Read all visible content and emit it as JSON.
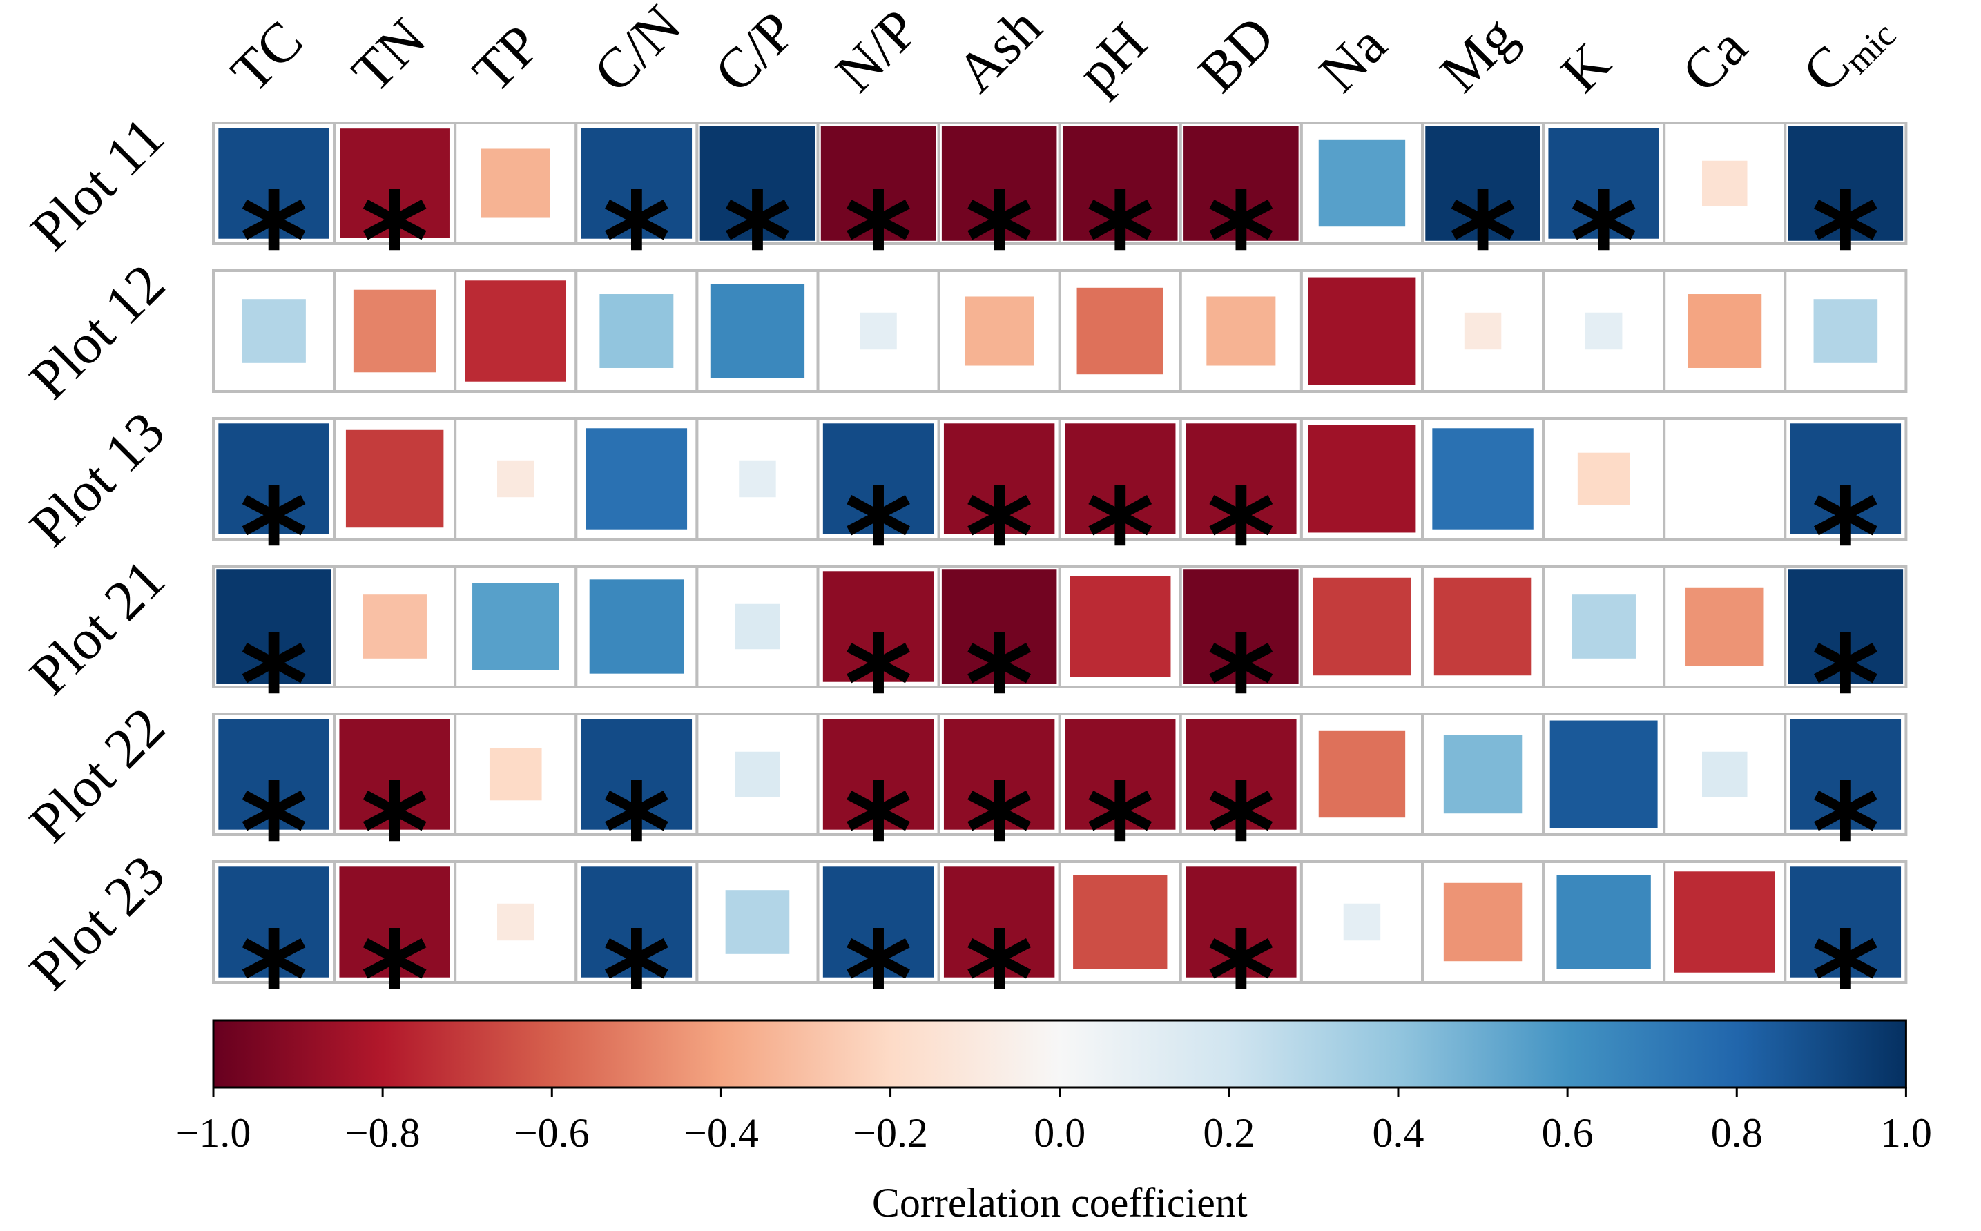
{
  "chart_data": {
    "type": "heatmap",
    "title": "",
    "columns": [
      "TC",
      "TN",
      "TP",
      "C/N",
      "C/P",
      "N/P",
      "Ash",
      "pH",
      "BD",
      "Na",
      "Mg",
      "K",
      "Ca",
      "C_mic"
    ],
    "column_labels": [
      {
        "base": "TC",
        "sub": ""
      },
      {
        "base": "TN",
        "sub": ""
      },
      {
        "base": "TP",
        "sub": ""
      },
      {
        "base": "C/N",
        "sub": ""
      },
      {
        "base": "C/P",
        "sub": ""
      },
      {
        "base": "N/P",
        "sub": ""
      },
      {
        "base": "Ash",
        "sub": ""
      },
      {
        "base": "pH",
        "sub": ""
      },
      {
        "base": "BD",
        "sub": ""
      },
      {
        "base": "Na",
        "sub": ""
      },
      {
        "base": "Mg",
        "sub": ""
      },
      {
        "base": "K",
        "sub": ""
      },
      {
        "base": "Ca",
        "sub": ""
      },
      {
        "base": "C",
        "sub": "mic"
      }
    ],
    "rows": [
      "Plot 11",
      "Plot 12",
      "Plot 13",
      "Plot 21",
      "Plot 22",
      "Plot 23"
    ],
    "values": [
      [
        0.9,
        -0.88,
        -0.35,
        0.9,
        0.97,
        -0.97,
        -0.97,
        -0.97,
        -0.97,
        0.55,
        0.97,
        0.9,
        -0.15,
        0.97
      ],
      [
        0.3,
        -0.5,
        -0.75,
        0.4,
        0.65,
        0.1,
        -0.35,
        -0.55,
        -0.35,
        -0.85,
        -0.1,
        0.1,
        -0.4,
        0.3
      ],
      [
        0.9,
        -0.7,
        -0.1,
        0.75,
        0.1,
        0.9,
        -0.9,
        -0.9,
        -0.9,
        -0.85,
        0.75,
        -0.2,
        0.0,
        0.9
      ],
      [
        0.97,
        -0.3,
        0.55,
        0.65,
        0.15,
        -0.9,
        -0.97,
        -0.75,
        -0.97,
        -0.7,
        -0.7,
        0.3,
        -0.45,
        0.97
      ],
      [
        0.9,
        -0.9,
        -0.2,
        0.9,
        0.15,
        -0.9,
        -0.9,
        -0.9,
        -0.9,
        -0.55,
        0.45,
        0.85,
        0.15,
        0.9
      ],
      [
        0.9,
        -0.9,
        -0.1,
        0.9,
        0.3,
        0.9,
        -0.9,
        -0.65,
        -0.9,
        0.1,
        -0.45,
        0.65,
        -0.75,
        0.9
      ]
    ],
    "significant": [
      [
        true,
        true,
        false,
        true,
        true,
        true,
        true,
        true,
        true,
        false,
        true,
        true,
        false,
        true
      ],
      [
        false,
        false,
        false,
        false,
        false,
        false,
        false,
        false,
        false,
        false,
        false,
        false,
        false,
        false
      ],
      [
        true,
        false,
        false,
        false,
        false,
        true,
        true,
        true,
        true,
        false,
        false,
        false,
        false,
        true
      ],
      [
        true,
        false,
        false,
        false,
        false,
        true,
        true,
        false,
        true,
        false,
        false,
        false,
        false,
        true
      ],
      [
        true,
        true,
        false,
        true,
        false,
        true,
        true,
        true,
        true,
        false,
        false,
        false,
        false,
        true
      ],
      [
        true,
        true,
        false,
        true,
        false,
        true,
        true,
        false,
        true,
        false,
        false,
        false,
        false,
        true
      ]
    ],
    "significance_marker": "*",
    "colorbar": {
      "label": "Correlation coefficient",
      "range": [
        -1.0,
        1.0
      ],
      "ticks": [
        -1.0,
        -0.8,
        -0.6,
        -0.4,
        -0.2,
        0.0,
        0.2,
        0.4,
        0.6,
        0.8,
        1.0
      ],
      "tick_labels": [
        "−1.0",
        "−0.8",
        "−0.6",
        "−0.4",
        "−0.2",
        "0.0",
        "0.2",
        "0.4",
        "0.6",
        "0.8",
        "1.0"
      ],
      "colormap": "RdBu",
      "stops": [
        "#67001f",
        "#b2182b",
        "#d6604d",
        "#f4a582",
        "#fddbc7",
        "#f7f7f7",
        "#d1e5f0",
        "#92c5de",
        "#4393c3",
        "#2166ac",
        "#053061"
      ]
    },
    "xlabel": "",
    "ylabel": ""
  }
}
